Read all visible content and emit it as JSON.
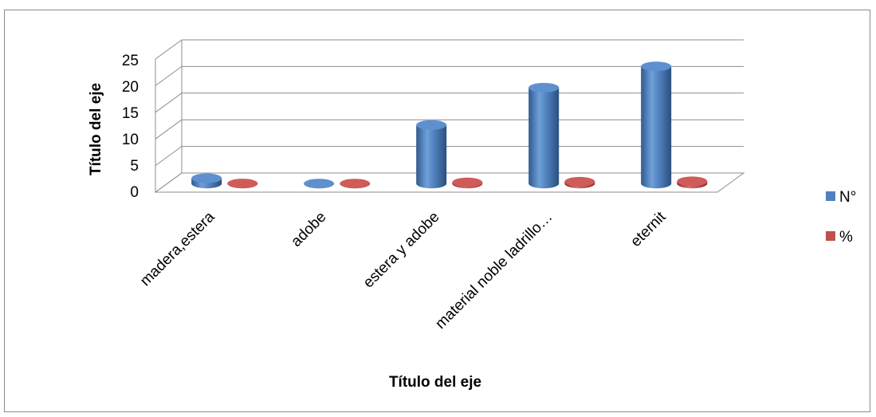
{
  "chart_data": {
    "type": "bar",
    "categories": [
      "madera,estera",
      "adobe",
      "estera y adobe",
      "material noble ladrillo…",
      "eternit"
    ],
    "series": [
      {
        "name": "N°",
        "values": [
          1,
          0,
          11,
          18,
          22
        ],
        "color": "#4f81bd"
      },
      {
        "name": "%",
        "values": [
          0.02,
          0.0,
          0.21,
          0.35,
          0.42
        ],
        "color": "#c0504d"
      }
    ],
    "ylim": [
      0,
      25
    ],
    "yticks": [
      "0",
      "5",
      "10",
      "15",
      "20",
      "25"
    ],
    "xlabel": "Título del eje",
    "ylabel": "Título del eje",
    "grid": true,
    "legend_position": "right",
    "style": "3d-cylinder"
  }
}
